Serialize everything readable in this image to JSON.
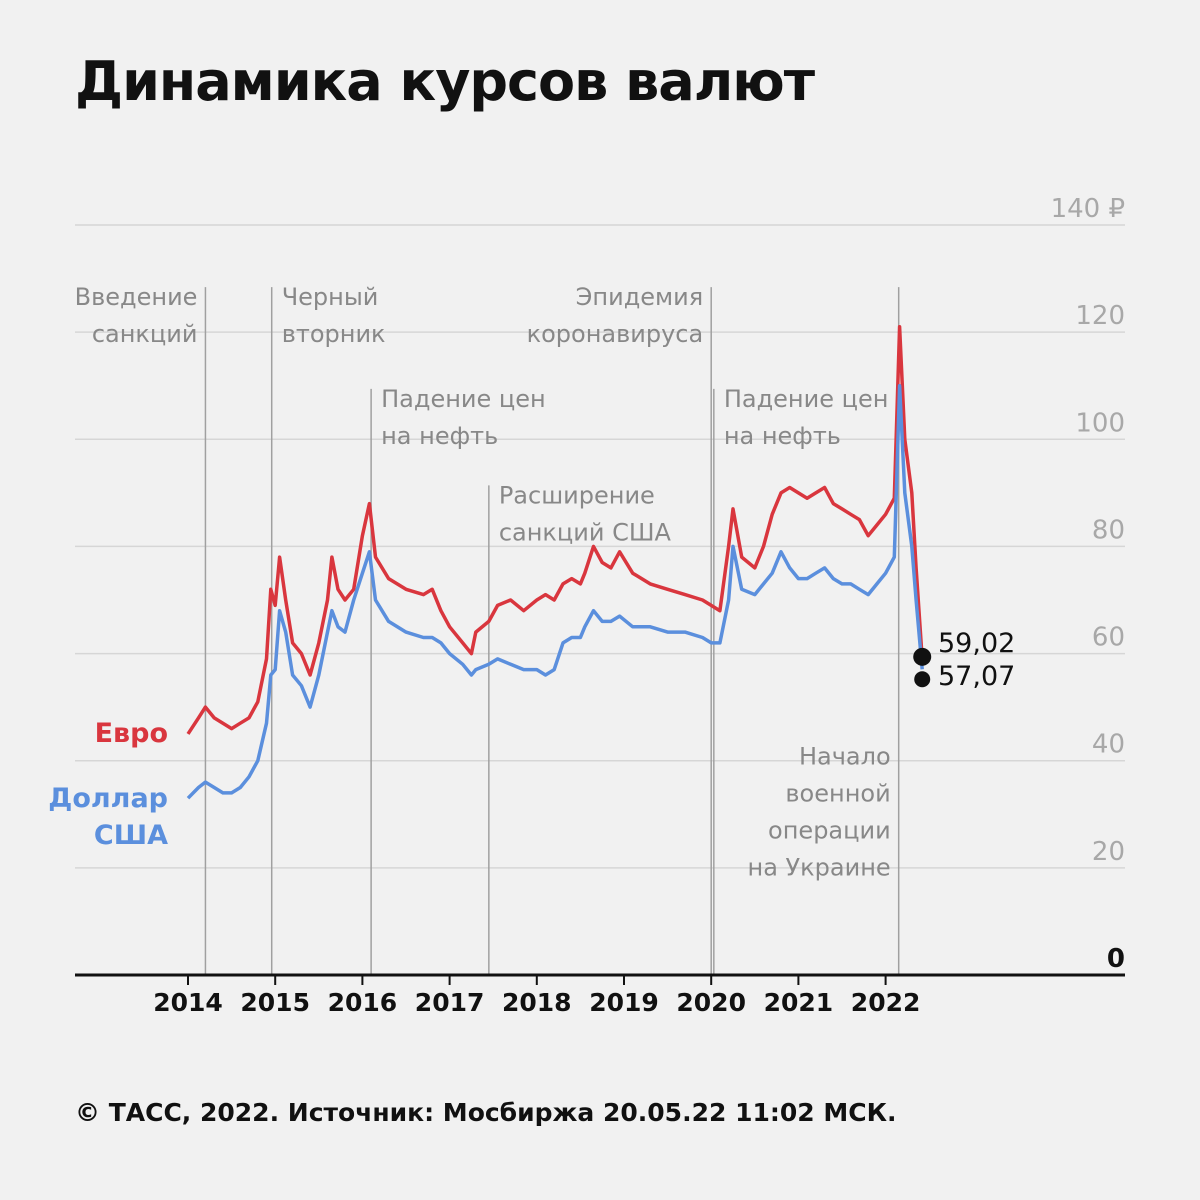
{
  "title": "Динамика курсов валют",
  "footer": "© ТАСС, 2022. Источник: Мосбиржа 20.05.22 11:02 МСК.",
  "colors": {
    "euro": "#d9363e",
    "usd": "#5b8fdd",
    "grid": "#d6d6d6",
    "axis": "#111111",
    "label": "#888888"
  },
  "chart_data": {
    "type": "line",
    "title": "Динамика курсов валют",
    "xlabel": "",
    "ylabel": "",
    "ylim": [
      0,
      140
    ],
    "y_ticks": [
      {
        "value": 0,
        "label": "0"
      },
      {
        "value": 20,
        "label": "20"
      },
      {
        "value": 40,
        "label": "40"
      },
      {
        "value": 60,
        "label": "60"
      },
      {
        "value": 80,
        "label": "80"
      },
      {
        "value": 100,
        "label": "100"
      },
      {
        "value": 120,
        "label": "120"
      },
      {
        "value": 140,
        "label": "140 ₽"
      }
    ],
    "x_ticks": [
      "2014",
      "2015",
      "2016",
      "2017",
      "2018",
      "2019",
      "2020",
      "2021",
      "2022"
    ],
    "grid": true,
    "series": [
      {
        "name": "Евро",
        "color": "#d9363e",
        "points": [
          [
            2014.0,
            45
          ],
          [
            2014.12,
            48
          ],
          [
            2014.2,
            50
          ],
          [
            2014.3,
            48
          ],
          [
            2014.4,
            47
          ],
          [
            2014.5,
            46
          ],
          [
            2014.6,
            47
          ],
          [
            2014.7,
            48
          ],
          [
            2014.8,
            51
          ],
          [
            2014.9,
            59
          ],
          [
            2014.95,
            72
          ],
          [
            2015.0,
            69
          ],
          [
            2015.05,
            78
          ],
          [
            2015.12,
            70
          ],
          [
            2015.2,
            62
          ],
          [
            2015.3,
            60
          ],
          [
            2015.4,
            56
          ],
          [
            2015.5,
            62
          ],
          [
            2015.6,
            70
          ],
          [
            2015.65,
            78
          ],
          [
            2015.72,
            72
          ],
          [
            2015.8,
            70
          ],
          [
            2015.9,
            72
          ],
          [
            2016.0,
            82
          ],
          [
            2016.08,
            88
          ],
          [
            2016.15,
            78
          ],
          [
            2016.3,
            74
          ],
          [
            2016.5,
            72
          ],
          [
            2016.7,
            71
          ],
          [
            2016.8,
            72
          ],
          [
            2016.9,
            68
          ],
          [
            2017.0,
            65
          ],
          [
            2017.15,
            62
          ],
          [
            2017.25,
            60
          ],
          [
            2017.3,
            64
          ],
          [
            2017.45,
            66
          ],
          [
            2017.55,
            69
          ],
          [
            2017.7,
            70
          ],
          [
            2017.85,
            68
          ],
          [
            2018.0,
            70
          ],
          [
            2018.1,
            71
          ],
          [
            2018.2,
            70
          ],
          [
            2018.3,
            73
          ],
          [
            2018.4,
            74
          ],
          [
            2018.5,
            73
          ],
          [
            2018.55,
            75
          ],
          [
            2018.65,
            80
          ],
          [
            2018.75,
            77
          ],
          [
            2018.85,
            76
          ],
          [
            2018.95,
            79
          ],
          [
            2019.1,
            75
          ],
          [
            2019.3,
            73
          ],
          [
            2019.5,
            72
          ],
          [
            2019.7,
            71
          ],
          [
            2019.9,
            70
          ],
          [
            2020.0,
            69
          ],
          [
            2020.1,
            68
          ],
          [
            2020.2,
            80
          ],
          [
            2020.25,
            87
          ],
          [
            2020.35,
            78
          ],
          [
            2020.5,
            76
          ],
          [
            2020.6,
            80
          ],
          [
            2020.7,
            86
          ],
          [
            2020.8,
            90
          ],
          [
            2020.9,
            91
          ],
          [
            2021.0,
            90
          ],
          [
            2021.1,
            89
          ],
          [
            2021.2,
            90
          ],
          [
            2021.3,
            91
          ],
          [
            2021.4,
            88
          ],
          [
            2021.5,
            87
          ],
          [
            2021.6,
            86
          ],
          [
            2021.7,
            85
          ],
          [
            2021.8,
            82
          ],
          [
            2021.9,
            84
          ],
          [
            2022.0,
            86
          ],
          [
            2022.1,
            89
          ],
          [
            2022.16,
            121
          ],
          [
            2022.22,
            100
          ],
          [
            2022.3,
            90
          ],
          [
            2022.35,
            76
          ],
          [
            2022.42,
            59.02
          ]
        ]
      },
      {
        "name": "Доллар США",
        "color": "#5b8fdd",
        "points": [
          [
            2014.0,
            33
          ],
          [
            2014.12,
            35
          ],
          [
            2014.2,
            36
          ],
          [
            2014.3,
            35
          ],
          [
            2014.4,
            34
          ],
          [
            2014.5,
            34
          ],
          [
            2014.6,
            35
          ],
          [
            2014.7,
            37
          ],
          [
            2014.8,
            40
          ],
          [
            2014.9,
            47
          ],
          [
            2014.95,
            56
          ],
          [
            2015.0,
            57
          ],
          [
            2015.05,
            68
          ],
          [
            2015.12,
            64
          ],
          [
            2015.2,
            56
          ],
          [
            2015.3,
            54
          ],
          [
            2015.4,
            50
          ],
          [
            2015.5,
            56
          ],
          [
            2015.6,
            64
          ],
          [
            2015.65,
            68
          ],
          [
            2015.72,
            65
          ],
          [
            2015.8,
            64
          ],
          [
            2015.9,
            70
          ],
          [
            2016.0,
            75
          ],
          [
            2016.08,
            79
          ],
          [
            2016.15,
            70
          ],
          [
            2016.3,
            66
          ],
          [
            2016.5,
            64
          ],
          [
            2016.7,
            63
          ],
          [
            2016.8,
            63
          ],
          [
            2016.9,
            62
          ],
          [
            2017.0,
            60
          ],
          [
            2017.15,
            58
          ],
          [
            2017.25,
            56
          ],
          [
            2017.3,
            57
          ],
          [
            2017.45,
            58
          ],
          [
            2017.55,
            59
          ],
          [
            2017.7,
            58
          ],
          [
            2017.85,
            57
          ],
          [
            2018.0,
            57
          ],
          [
            2018.1,
            56
          ],
          [
            2018.2,
            57
          ],
          [
            2018.3,
            62
          ],
          [
            2018.4,
            63
          ],
          [
            2018.5,
            63
          ],
          [
            2018.55,
            65
          ],
          [
            2018.65,
            68
          ],
          [
            2018.75,
            66
          ],
          [
            2018.85,
            66
          ],
          [
            2018.95,
            67
          ],
          [
            2019.1,
            65
          ],
          [
            2019.3,
            65
          ],
          [
            2019.5,
            64
          ],
          [
            2019.7,
            64
          ],
          [
            2019.9,
            63
          ],
          [
            2020.0,
            62
          ],
          [
            2020.1,
            62
          ],
          [
            2020.2,
            70
          ],
          [
            2020.25,
            80
          ],
          [
            2020.35,
            72
          ],
          [
            2020.5,
            71
          ],
          [
            2020.6,
            73
          ],
          [
            2020.7,
            75
          ],
          [
            2020.8,
            79
          ],
          [
            2020.9,
            76
          ],
          [
            2021.0,
            74
          ],
          [
            2021.1,
            74
          ],
          [
            2021.2,
            75
          ],
          [
            2021.3,
            76
          ],
          [
            2021.4,
            74
          ],
          [
            2021.5,
            73
          ],
          [
            2021.6,
            73
          ],
          [
            2021.7,
            72
          ],
          [
            2021.8,
            71
          ],
          [
            2021.9,
            73
          ],
          [
            2022.0,
            75
          ],
          [
            2022.1,
            78
          ],
          [
            2022.16,
            110
          ],
          [
            2022.22,
            90
          ],
          [
            2022.3,
            80
          ],
          [
            2022.35,
            70
          ],
          [
            2022.42,
            57.07
          ]
        ]
      }
    ],
    "series_labels": [
      {
        "lines": [
          "Евро"
        ],
        "color": "#d9363e"
      },
      {
        "lines": [
          "Доллар",
          "США"
        ],
        "color": "#5b8fdd"
      }
    ],
    "end_values": [
      {
        "label": "59,02",
        "value": 59.02,
        "x": 2022.42
      },
      {
        "label": "57,07",
        "value": 57.07,
        "x": 2022.42
      }
    ],
    "events": [
      {
        "x": 2014.2,
        "lines": [
          "Введение",
          "санкций"
        ],
        "y_top": 134,
        "align": "right"
      },
      {
        "x": 2014.96,
        "lines": [
          "Черный",
          "вторник"
        ],
        "y_top": 134,
        "align": "left"
      },
      {
        "x": 2016.1,
        "lines": [
          "Падение цен",
          "на нефть"
        ],
        "y_top": 115,
        "align": "left"
      },
      {
        "x": 2017.45,
        "lines": [
          "Расширение",
          "санкций США"
        ],
        "y_top": 97,
        "align": "left"
      },
      {
        "x": 2020.0,
        "lines": [
          "Эпидемия",
          "коронавируса"
        ],
        "y_top": 134,
        "align": "right"
      },
      {
        "x": 2020.03,
        "lines": [
          "Падение цен",
          "на нефть"
        ],
        "y_top": 115,
        "align": "left"
      },
      {
        "x": 2022.15,
        "lines": [
          "Начало",
          "военной",
          "операции",
          "на Украине"
        ],
        "y_top": 134,
        "align": "right_bottom"
      }
    ],
    "annotations": [
      "Введение санкций",
      "Черный вторник",
      "Падение цен на нефть",
      "Расширение санкций США",
      "Эпидемия коронавируса",
      "Падение цен на нефть",
      "Начало военной операции на Украине"
    ]
  }
}
